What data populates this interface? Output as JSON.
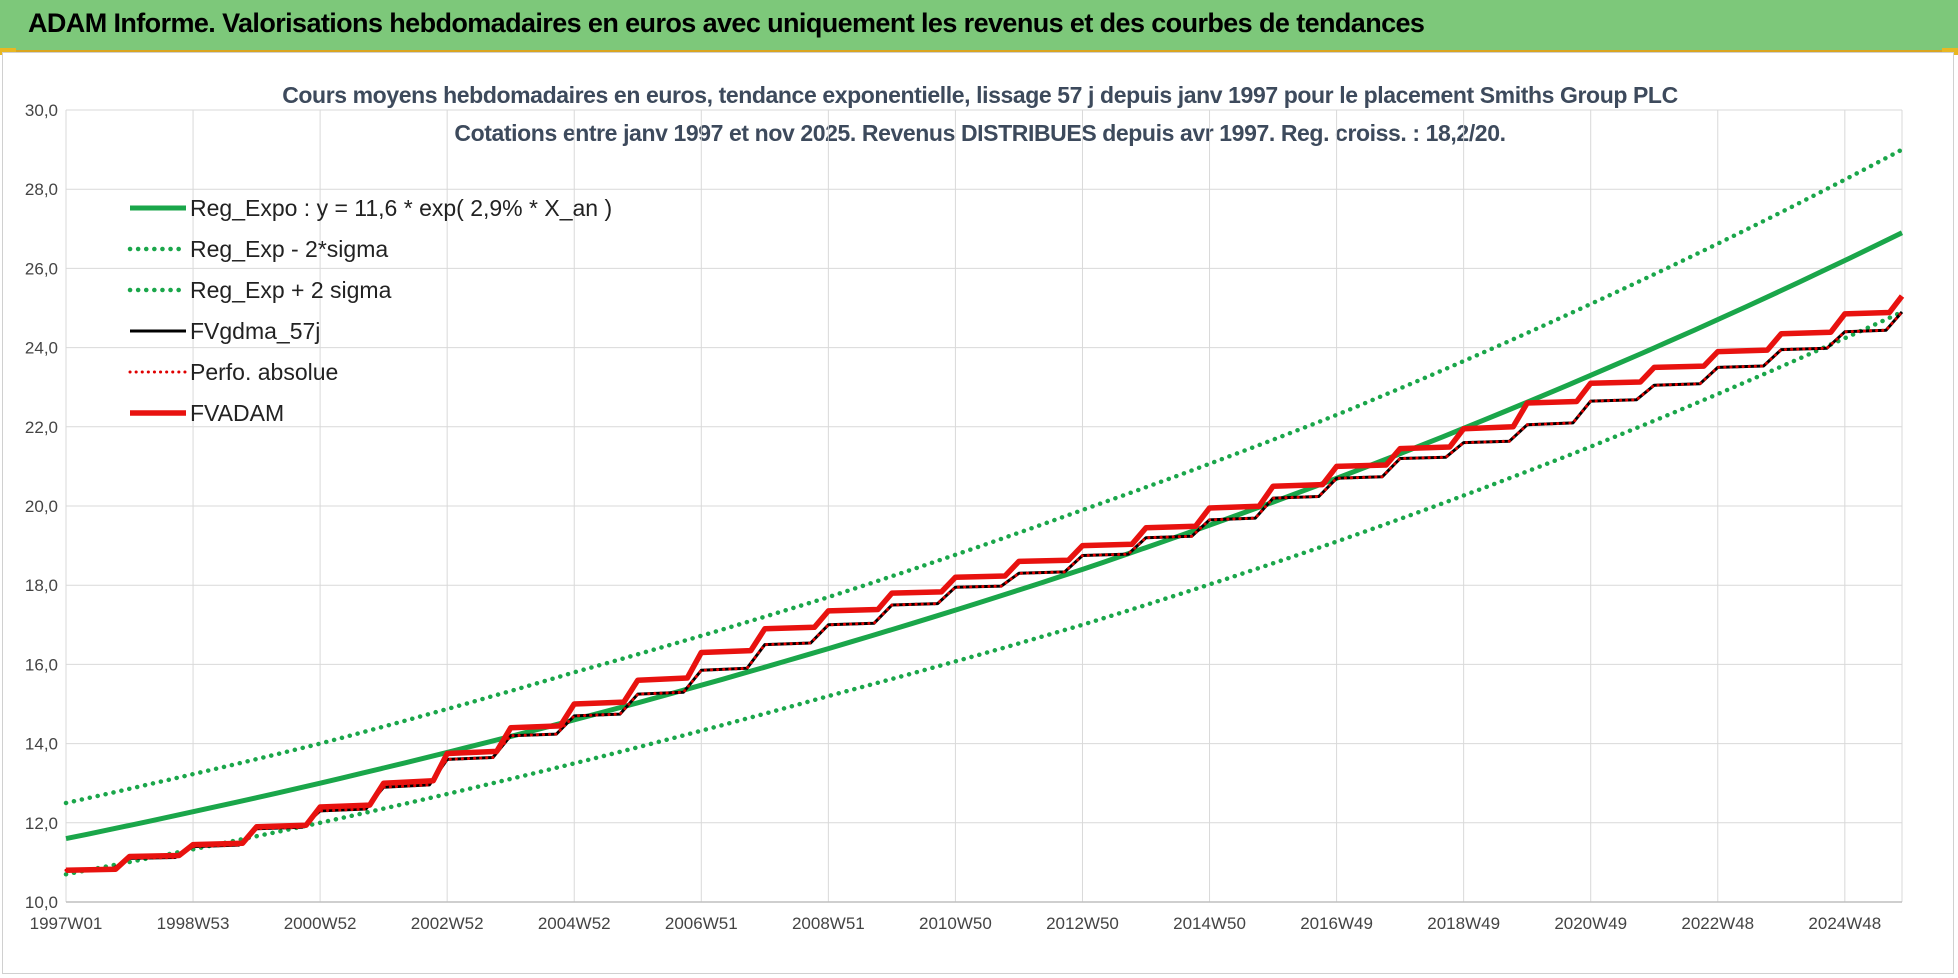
{
  "banner": {
    "title": "ADAM Informe. Valorisations hebdomadaires en euros avec uniquement les revenus et des courbes de tendances"
  },
  "colors": {
    "banner": "#7dc87a",
    "trend": "#1aa64a",
    "trend_band": "#1aa64a",
    "fvgdma": "#000000",
    "perfo": "#e00000",
    "fvadam": "#e8120f",
    "grid": "#d9d9d9"
  },
  "chart_data": {
    "type": "line",
    "title": "Cours moyens hebdomadaires en euros, tendance exponentielle, lissage 57 j depuis janv 1997 pour le placement Smiths Group PLC",
    "subtitle": "Cotations entre janv 1997 et nov 2025. Revenus DISTRIBUES depuis avr 1997. Reg. croiss. : 18,2/20.",
    "xlabel": "",
    "ylabel": "",
    "ylim": [
      10,
      30
    ],
    "yticks": [
      "10,0",
      "12,0",
      "14,0",
      "16,0",
      "18,0",
      "20,0",
      "22,0",
      "24,0",
      "26,0",
      "28,0",
      "30,0"
    ],
    "xlim": [
      1997.0,
      2025.9
    ],
    "xticks": [
      {
        "label": "1997W01",
        "x": 1997.0
      },
      {
        "label": "1998W53",
        "x": 1999.0
      },
      {
        "label": "2000W52",
        "x": 2001.0
      },
      {
        "label": "2002W52",
        "x": 2003.0
      },
      {
        "label": "2004W52",
        "x": 2005.0
      },
      {
        "label": "2006W51",
        "x": 2007.0
      },
      {
        "label": "2008W51",
        "x": 2009.0
      },
      {
        "label": "2010W50",
        "x": 2011.0
      },
      {
        "label": "2012W50",
        "x": 2013.0
      },
      {
        "label": "2014W50",
        "x": 2015.0
      },
      {
        "label": "2016W49",
        "x": 2017.0
      },
      {
        "label": "2018W49",
        "x": 2019.0
      },
      {
        "label": "2020W49",
        "x": 2021.0
      },
      {
        "label": "2022W48",
        "x": 2023.0
      },
      {
        "label": "2024W48",
        "x": 2025.0
      }
    ],
    "grid": true,
    "legend_position": "top-left",
    "series": [
      {
        "name": "Reg_Expo : y = 11,6 * exp( 2,9% *  X_an )",
        "style": "solid-thick",
        "x": [
          1997.0,
          2001.0,
          2005.0,
          2009.0,
          2013.0,
          2017.0,
          2021.0,
          2025.9
        ],
        "y": [
          11.6,
          13.0,
          14.6,
          16.4,
          18.4,
          20.7,
          23.3,
          26.9
        ]
      },
      {
        "name": "Reg_Exp - 2*sigma",
        "style": "dotted",
        "x": [
          1997.0,
          2001.0,
          2005.0,
          2009.0,
          2013.0,
          2017.0,
          2021.0,
          2025.9
        ],
        "y": [
          10.7,
          12.0,
          13.5,
          15.2,
          17.0,
          19.1,
          21.5,
          24.9
        ]
      },
      {
        "name": "Reg_Exp + 2 sigma",
        "style": "dotted",
        "x": [
          1997.0,
          2001.0,
          2005.0,
          2009.0,
          2013.0,
          2017.0,
          2021.0,
          2025.9
        ],
        "y": [
          12.5,
          14.0,
          15.8,
          17.7,
          19.9,
          22.3,
          25.1,
          29.0
        ]
      },
      {
        "name": "FVgdma_57j",
        "style": "solid-thin",
        "x": [
          1997.0,
          1998.0,
          1999.0,
          2000.0,
          2001.0,
          2002.0,
          2003.0,
          2004.0,
          2005.0,
          2006.0,
          2007.0,
          2008.0,
          2009.0,
          2010.0,
          2011.0,
          2012.0,
          2013.0,
          2014.0,
          2015.0,
          2016.0,
          2017.0,
          2018.0,
          2019.0,
          2020.0,
          2021.0,
          2022.0,
          2023.0,
          2024.0,
          2025.0,
          2025.9
        ],
        "y": [
          10.8,
          11.1,
          11.4,
          11.85,
          12.3,
          12.9,
          13.6,
          14.2,
          14.7,
          15.25,
          15.85,
          16.5,
          17.0,
          17.5,
          17.95,
          18.3,
          18.75,
          19.2,
          19.65,
          20.2,
          20.7,
          21.2,
          21.6,
          22.05,
          22.65,
          23.05,
          23.5,
          23.95,
          24.4,
          24.9
        ]
      },
      {
        "name": "Perfo. absolue",
        "style": "dotted-red",
        "x": [
          1997.0,
          1998.0,
          1999.0,
          2000.0,
          2001.0,
          2002.0,
          2003.0,
          2004.0,
          2005.0,
          2006.0,
          2007.0,
          2008.0,
          2009.0,
          2010.0,
          2011.0,
          2012.0,
          2013.0,
          2014.0,
          2015.0,
          2016.0,
          2017.0,
          2018.0,
          2019.0,
          2020.0,
          2021.0,
          2022.0,
          2023.0,
          2024.0,
          2025.0,
          2025.9
        ],
        "y": [
          10.8,
          11.1,
          11.4,
          11.85,
          12.3,
          12.9,
          13.6,
          14.2,
          14.7,
          15.25,
          15.85,
          16.5,
          17.0,
          17.5,
          17.95,
          18.3,
          18.75,
          19.2,
          19.65,
          20.2,
          20.7,
          21.2,
          21.6,
          22.05,
          22.65,
          23.05,
          23.5,
          23.95,
          24.4,
          24.9
        ]
      },
      {
        "name": "FVADAM",
        "style": "step-thick",
        "x": [
          1997.0,
          1998.0,
          1999.0,
          2000.0,
          2001.0,
          2002.0,
          2003.0,
          2004.0,
          2005.0,
          2006.0,
          2007.0,
          2008.0,
          2009.0,
          2010.0,
          2011.0,
          2012.0,
          2013.0,
          2014.0,
          2015.0,
          2016.0,
          2017.0,
          2018.0,
          2019.0,
          2020.0,
          2021.0,
          2022.0,
          2023.0,
          2024.0,
          2025.0,
          2025.9
        ],
        "y": [
          10.8,
          11.15,
          11.45,
          11.9,
          12.4,
          13.0,
          13.75,
          14.4,
          15.0,
          15.6,
          16.3,
          16.9,
          17.35,
          17.8,
          18.2,
          18.6,
          19.0,
          19.45,
          19.95,
          20.5,
          21.0,
          21.45,
          21.95,
          22.6,
          23.1,
          23.5,
          23.9,
          24.35,
          24.85,
          25.3
        ]
      }
    ]
  }
}
